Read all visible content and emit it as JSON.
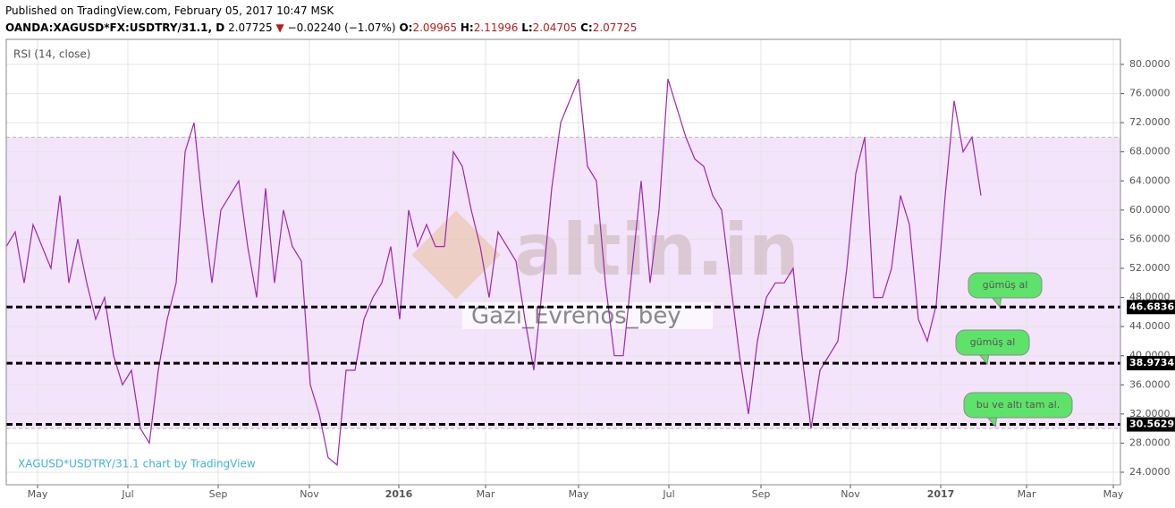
{
  "header": {
    "published": "Published on TradingView.com, February 05, 2017 10:47 MSK",
    "symbol": "OANDA:XAGUSD*FX:USDTRY/31.1, D",
    "last": "2.07725",
    "change": "−0.02240 (−1.07%)",
    "open_label": "O:",
    "open": "2.09965",
    "high_label": "H:",
    "high": "2.11996",
    "low_label": "L:",
    "low": "2.04705",
    "close_label": "C:",
    "close": "2.07725"
  },
  "chart_data": {
    "type": "line",
    "title": "RSI (14, close)",
    "watermark": "XAGUSD*USDTRY/31.1 chart by TradingView",
    "logo": "altin.in",
    "author": "Gazi_Evrenos_bey",
    "x": [
      0,
      1,
      2,
      3,
      4,
      5,
      6,
      7,
      8,
      9,
      10,
      11,
      12,
      13,
      14,
      15,
      16,
      17,
      18,
      19,
      20,
      21,
      22,
      23,
      24,
      25,
      26,
      27,
      28,
      29,
      30,
      31,
      32,
      33,
      34,
      35,
      36,
      37,
      38,
      39,
      40,
      41,
      42,
      43,
      44,
      45,
      46,
      47,
      48,
      49,
      50,
      51,
      52,
      53,
      54,
      55,
      56,
      57,
      58,
      59,
      60,
      61,
      62,
      63,
      64,
      65,
      66,
      67,
      68,
      69,
      70,
      71,
      72,
      73,
      74,
      75,
      76,
      77,
      78,
      79,
      80,
      81,
      82,
      83,
      84,
      85,
      86,
      87,
      88,
      89,
      90,
      91,
      92,
      93,
      94,
      95,
      96,
      97,
      98,
      99,
      100,
      101,
      102,
      103,
      104,
      105,
      106,
      107,
      108,
      109
    ],
    "series": [
      {
        "name": "RSI",
        "color": "#9c27b0",
        "values": [
          55,
          57,
          50,
          58,
          55,
          52,
          62,
          50,
          56,
          50,
          45,
          48,
          40,
          36,
          38,
          30,
          28,
          38,
          45,
          50,
          68,
          72,
          60,
          50,
          60,
          62,
          64,
          55,
          48,
          63,
          50,
          60,
          55,
          53,
          36,
          32,
          26,
          25,
          38,
          38,
          45,
          48,
          50,
          55,
          45,
          60,
          55,
          58,
          55,
          55,
          68,
          66,
          60,
          55,
          48,
          57,
          55,
          53,
          45,
          38,
          50,
          63,
          72,
          75,
          78,
          66,
          64,
          50,
          40,
          40,
          52,
          64,
          50,
          60,
          78,
          74,
          70,
          67,
          66,
          62,
          60,
          50,
          40,
          32,
          42,
          48,
          50,
          50,
          52,
          40,
          30,
          38,
          40,
          42,
          52,
          65,
          70,
          48,
          48,
          52,
          62,
          58,
          45,
          42,
          47,
          62,
          75,
          68,
          70,
          62
        ]
      }
    ],
    "band": [
      30,
      70
    ],
    "band_color": "#f3e3fb",
    "levels": [
      46.6836,
      38.9734,
      30.5629
    ],
    "annotations": [
      "gümüş al",
      "gümüş al",
      "bu ve altı tam al."
    ],
    "xlim": [
      0,
      124.6
    ],
    "xticks": [
      {
        "value": 3.5,
        "label": "May"
      },
      {
        "value": 13.6,
        "label": "Jul"
      },
      {
        "value": 23.7,
        "label": "Sep"
      },
      {
        "value": 33.9,
        "label": "Nov"
      },
      {
        "value": 43.9,
        "label": "2016"
      },
      {
        "value": 53.6,
        "label": "Mar"
      },
      {
        "value": 64,
        "label": "May"
      },
      {
        "value": 74.1,
        "label": "Jul"
      },
      {
        "value": 84.4,
        "label": "Sep"
      },
      {
        "value": 94.4,
        "label": "Nov"
      },
      {
        "value": 104.5,
        "label": "2017"
      },
      {
        "value": 114.1,
        "label": "Mar"
      },
      {
        "value": 123.8,
        "label": "May"
      }
    ],
    "ylim": [
      22.28,
      83.44
    ],
    "yticks": [
      {
        "value": 24,
        "label": "24.0000"
      },
      {
        "value": 28,
        "label": "28.0000"
      },
      {
        "value": 32,
        "label": "32.0000"
      },
      {
        "value": 36,
        "label": "36.0000"
      },
      {
        "value": 40,
        "label": "40.0000"
      },
      {
        "value": 44,
        "label": "44.0000"
      },
      {
        "value": 48,
        "label": "48.0000"
      },
      {
        "value": 52,
        "label": "52.0000"
      },
      {
        "value": 56,
        "label": "56.0000"
      },
      {
        "value": 60,
        "label": "60.0000"
      },
      {
        "value": 64,
        "label": "64.0000"
      },
      {
        "value": 68,
        "label": "68.0000"
      },
      {
        "value": 72,
        "label": "72.0000"
      },
      {
        "value": 76,
        "label": "76.0000"
      },
      {
        "value": 80,
        "label": "80.0000"
      }
    ],
    "grid": true
  }
}
